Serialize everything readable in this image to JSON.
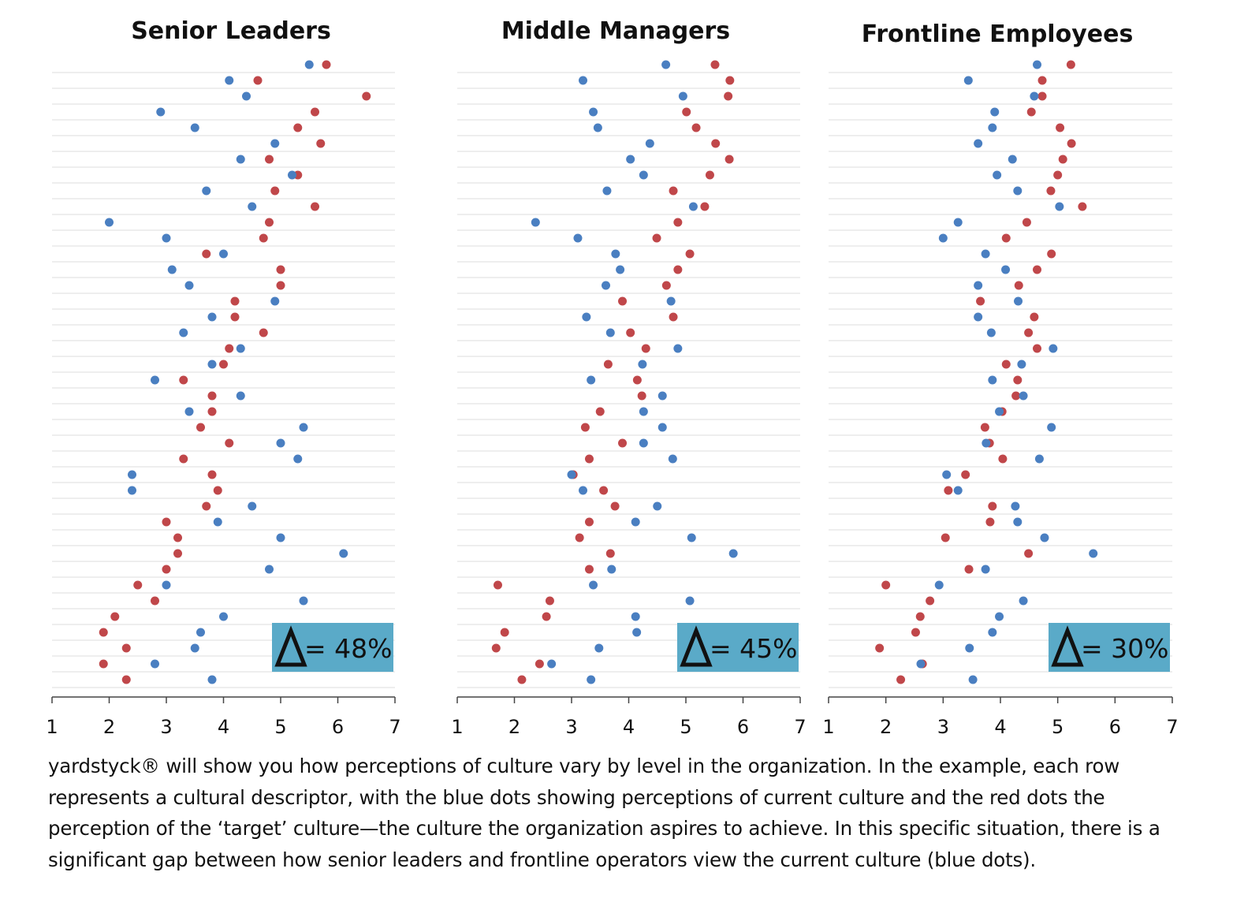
{
  "colors": {
    "current": "#4a7fc1",
    "target": "#c0474a",
    "badge": "#5aaac8",
    "grid": "#e3e3e3",
    "axis": "#444444"
  },
  "legend_meaning": {
    "current": "current culture",
    "target": "target culture"
  },
  "chart_data": [
    {
      "type": "scatter",
      "title": "Senior Leaders",
      "xlim": [
        1,
        7
      ],
      "xticks": [
        "1",
        "2",
        "3",
        "4",
        "5",
        "6",
        "7"
      ],
      "delta_label": "= 48%",
      "series": [
        {
          "key": "current",
          "values": [
            5.5,
            4.1,
            4.4,
            2.9,
            3.5,
            4.9,
            4.3,
            5.2,
            3.7,
            4.5,
            2.0,
            3.0,
            4.0,
            3.1,
            3.4,
            4.9,
            3.8,
            3.3,
            4.3,
            3.8,
            2.8,
            4.3,
            3.4,
            5.4,
            5.0,
            5.3,
            2.4,
            2.4,
            4.5,
            3.9,
            5.0,
            6.1,
            4.8,
            3.0,
            5.4,
            4.0,
            3.6,
            3.5,
            2.8,
            3.8
          ]
        },
        {
          "key": "target",
          "values": [
            5.8,
            4.6,
            6.5,
            5.6,
            5.3,
            5.7,
            4.8,
            5.3,
            4.9,
            5.6,
            4.8,
            4.7,
            3.7,
            5.0,
            5.0,
            4.2,
            4.2,
            4.7,
            4.1,
            4.0,
            3.3,
            3.8,
            3.8,
            3.6,
            4.1,
            3.3,
            3.8,
            3.9,
            3.7,
            3.0,
            3.2,
            3.2,
            3.0,
            2.5,
            2.8,
            2.1,
            1.9,
            2.3,
            1.9,
            2.3
          ]
        }
      ]
    },
    {
      "type": "scatter",
      "title": "Middle Managers",
      "xlim": [
        1,
        7
      ],
      "xticks": [
        "1",
        "2",
        "3",
        "4",
        "5",
        "6",
        "7"
      ],
      "delta_label": "= 45%",
      "series": [
        {
          "key": "current",
          "values": [
            4.65,
            3.2,
            4.95,
            3.38,
            3.46,
            4.37,
            4.03,
            4.26,
            3.62,
            5.13,
            2.37,
            3.11,
            3.77,
            3.85,
            3.6,
            4.74,
            3.26,
            3.68,
            4.86,
            4.24,
            3.34,
            4.59,
            4.26,
            4.59,
            4.26,
            4.77,
            3.0,
            3.2,
            4.5,
            4.12,
            5.1,
            5.83,
            3.7,
            3.38,
            5.07,
            4.12,
            4.14,
            3.48,
            2.65,
            3.34
          ]
        },
        {
          "key": "target",
          "values": [
            5.51,
            5.77,
            5.74,
            5.01,
            5.18,
            5.52,
            5.76,
            5.42,
            4.78,
            5.33,
            4.86,
            4.49,
            5.07,
            4.86,
            4.66,
            3.89,
            4.78,
            4.03,
            4.3,
            3.64,
            4.15,
            4.23,
            3.5,
            3.24,
            3.89,
            3.31,
            3.03,
            3.56,
            3.76,
            3.31,
            3.14,
            3.68,
            3.31,
            1.71,
            2.62,
            2.56,
            1.83,
            1.68,
            2.44,
            2.13
          ]
        }
      ]
    },
    {
      "type": "scatter",
      "title": "Frontline Employees",
      "xlim": [
        1,
        7
      ],
      "xticks": [
        "1",
        "2",
        "3",
        "4",
        "5",
        "6",
        "7"
      ],
      "delta_label": "= 30%",
      "series": [
        {
          "key": "current",
          "values": [
            4.64,
            3.44,
            4.59,
            3.9,
            3.86,
            3.61,
            4.21,
            3.94,
            4.3,
            5.03,
            3.26,
            3.0,
            3.74,
            4.09,
            3.61,
            4.31,
            3.61,
            3.84,
            4.92,
            4.37,
            3.86,
            4.4,
            3.98,
            4.89,
            3.75,
            4.68,
            3.06,
            3.26,
            4.26,
            4.3,
            4.77,
            5.62,
            3.74,
            2.93,
            4.4,
            3.98,
            3.86,
            3.46,
            2.61,
            3.52
          ]
        },
        {
          "key": "target",
          "values": [
            5.23,
            4.73,
            4.73,
            4.54,
            5.04,
            5.24,
            5.09,
            5.0,
            4.88,
            5.43,
            4.46,
            4.1,
            4.89,
            4.64,
            4.32,
            3.65,
            4.59,
            4.49,
            4.64,
            4.1,
            4.3,
            4.27,
            4.03,
            3.73,
            3.81,
            4.04,
            3.39,
            3.09,
            3.86,
            3.82,
            3.04,
            4.49,
            3.45,
            2.0,
            2.77,
            2.6,
            2.52,
            1.89,
            2.64,
            2.26
          ]
        }
      ]
    }
  ],
  "caption": "yardstyck® will show you how perceptions of culture vary by level in the organization. In the example, each row represents a cultural descriptor, with the blue dots showing perceptions of current culture and the red dots the perception of the ‘target’ culture—the culture the organization aspires to achieve. In this specific situation, there is a significant gap between how senior leaders and frontline operators view the current culture (blue dots)."
}
